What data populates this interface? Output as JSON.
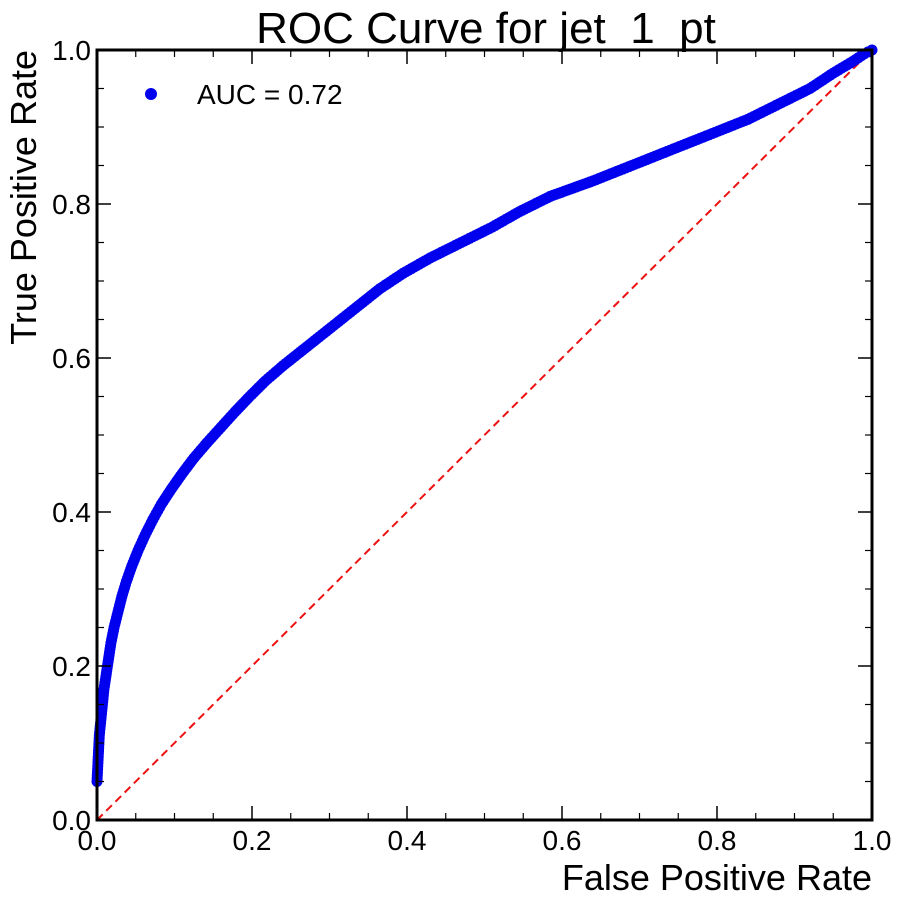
{
  "chart_data": {
    "type": "scatter",
    "title": "ROC Curve for jet_1_pt",
    "xlabel": "False Positive Rate",
    "ylabel": "True Positive Rate",
    "xlim": [
      0.0,
      1.0
    ],
    "ylim": [
      0.0,
      1.0
    ],
    "x_ticks": [
      "0.0",
      "0.2",
      "0.4",
      "0.6",
      "0.8",
      "1.0"
    ],
    "y_ticks": [
      "0.0",
      "0.2",
      "0.4",
      "0.6",
      "0.8",
      "1.0"
    ],
    "grid": false,
    "legend_position": "top-left",
    "legend": [
      "AUC = 0.72"
    ],
    "series": [
      {
        "name": "AUC = 0.72",
        "color": "#0000ee",
        "marker": "circle",
        "points": [
          [
            0.0,
            0.05
          ],
          [
            0.001,
            0.07
          ],
          [
            0.002,
            0.09
          ],
          [
            0.003,
            0.11
          ],
          [
            0.005,
            0.13
          ],
          [
            0.007,
            0.15
          ],
          [
            0.009,
            0.17
          ],
          [
            0.012,
            0.19
          ],
          [
            0.015,
            0.21
          ],
          [
            0.018,
            0.23
          ],
          [
            0.022,
            0.25
          ],
          [
            0.027,
            0.27
          ],
          [
            0.032,
            0.29
          ],
          [
            0.038,
            0.31
          ],
          [
            0.045,
            0.33
          ],
          [
            0.053,
            0.35
          ],
          [
            0.062,
            0.37
          ],
          [
            0.072,
            0.39
          ],
          [
            0.083,
            0.41
          ],
          [
            0.096,
            0.43
          ],
          [
            0.11,
            0.45
          ],
          [
            0.125,
            0.47
          ],
          [
            0.142,
            0.49
          ],
          [
            0.16,
            0.51
          ],
          [
            0.178,
            0.53
          ],
          [
            0.197,
            0.55
          ],
          [
            0.217,
            0.57
          ],
          [
            0.24,
            0.59
          ],
          [
            0.265,
            0.61
          ],
          [
            0.29,
            0.63
          ],
          [
            0.315,
            0.65
          ],
          [
            0.34,
            0.67
          ],
          [
            0.365,
            0.69
          ],
          [
            0.395,
            0.71
          ],
          [
            0.43,
            0.73
          ],
          [
            0.47,
            0.75
          ],
          [
            0.51,
            0.77
          ],
          [
            0.545,
            0.79
          ],
          [
            0.585,
            0.81
          ],
          [
            0.64,
            0.83
          ],
          [
            0.69,
            0.85
          ],
          [
            0.74,
            0.87
          ],
          [
            0.79,
            0.89
          ],
          [
            0.84,
            0.91
          ],
          [
            0.88,
            0.93
          ],
          [
            0.92,
            0.95
          ],
          [
            0.95,
            0.97
          ],
          [
            0.975,
            0.985
          ],
          [
            0.99,
            0.995
          ],
          [
            1.0,
            1.0
          ]
        ]
      }
    ],
    "reference_line": {
      "style": "dashed",
      "color": "#ee1111",
      "points": [
        [
          0.0,
          0.0
        ],
        [
          1.0,
          1.0
        ]
      ]
    }
  }
}
